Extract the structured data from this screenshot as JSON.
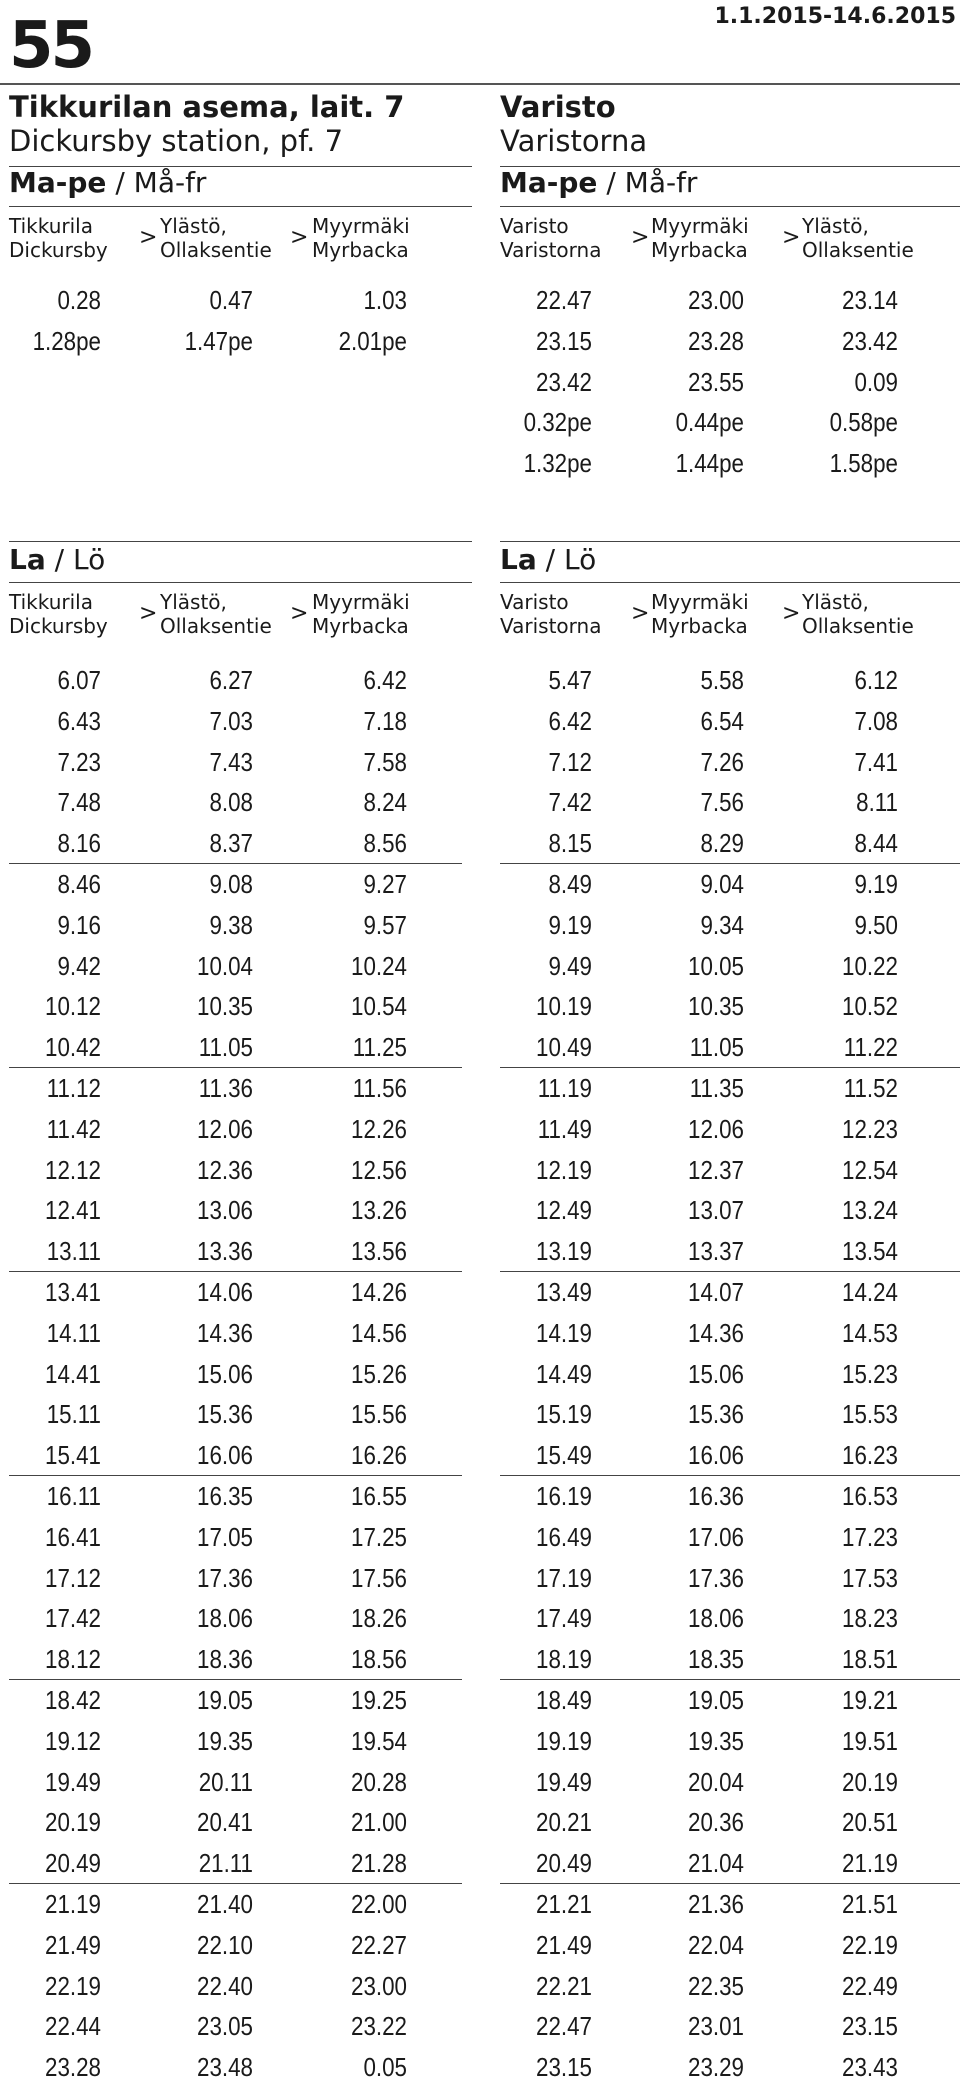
{
  "header": {
    "route_number": "55",
    "validity": "1.1.2015-14.6.2015"
  },
  "directions": [
    {
      "id": "left",
      "stop_fi": "Tikkurilan asema, lait. 7",
      "stop_sv": "Dickursby station, pf. 7",
      "columns": [
        {
          "fi": "Tikkurila",
          "sv": "Dickursby"
        },
        {
          "fi": "Ylästö,",
          "sv": "Ollaksentie"
        },
        {
          "fi": "Myyrmäki",
          "sv": "Myrbacka"
        }
      ],
      "arrow": ">",
      "weekday": {
        "label_fi": "Ma-pe",
        "sep": " / ",
        "label_sv": "Må-fr",
        "rows": [
          [
            "0.28",
            "0.47",
            "1.03"
          ],
          [
            "1.28pe",
            "1.47pe",
            "2.01pe"
          ]
        ]
      },
      "saturday": {
        "label_fi": "La",
        "sep": " / ",
        "label_sv": "Lö",
        "rows": [
          [
            "6.07",
            "6.27",
            "6.42"
          ],
          [
            "6.43",
            "7.03",
            "7.18"
          ],
          [
            "7.23",
            "7.43",
            "7.58"
          ],
          [
            "7.48",
            "8.08",
            "8.24"
          ],
          [
            "8.16",
            "8.37",
            "8.56"
          ],
          [
            "8.46",
            "9.08",
            "9.27"
          ],
          [
            "9.16",
            "9.38",
            "9.57"
          ],
          [
            "9.42",
            "10.04",
            "10.24"
          ],
          [
            "10.12",
            "10.35",
            "10.54"
          ],
          [
            "10.42",
            "11.05",
            "11.25"
          ],
          [
            "11.12",
            "11.36",
            "11.56"
          ],
          [
            "11.42",
            "12.06",
            "12.26"
          ],
          [
            "12.12",
            "12.36",
            "12.56"
          ],
          [
            "12.41",
            "13.06",
            "13.26"
          ],
          [
            "13.11",
            "13.36",
            "13.56"
          ],
          [
            "13.41",
            "14.06",
            "14.26"
          ],
          [
            "14.11",
            "14.36",
            "14.56"
          ],
          [
            "14.41",
            "15.06",
            "15.26"
          ],
          [
            "15.11",
            "15.36",
            "15.56"
          ],
          [
            "15.41",
            "16.06",
            "16.26"
          ],
          [
            "16.11",
            "16.35",
            "16.55"
          ],
          [
            "16.41",
            "17.05",
            "17.25"
          ],
          [
            "17.12",
            "17.36",
            "17.56"
          ],
          [
            "17.42",
            "18.06",
            "18.26"
          ],
          [
            "18.12",
            "18.36",
            "18.56"
          ],
          [
            "18.42",
            "19.05",
            "19.25"
          ],
          [
            "19.12",
            "19.35",
            "19.54"
          ],
          [
            "19.49",
            "20.11",
            "20.28"
          ],
          [
            "20.19",
            "20.41",
            "21.00"
          ],
          [
            "20.49",
            "21.11",
            "21.28"
          ],
          [
            "21.19",
            "21.40",
            "22.00"
          ],
          [
            "21.49",
            "22.10",
            "22.27"
          ],
          [
            "22.19",
            "22.40",
            "23.00"
          ],
          [
            "22.44",
            "23.05",
            "23.22"
          ],
          [
            "23.28",
            "23.48",
            "0.05"
          ]
        ]
      }
    },
    {
      "id": "right",
      "stop_fi": "Varisto",
      "stop_sv": "Varistorna",
      "columns": [
        {
          "fi": "Varisto",
          "sv": "Varistorna"
        },
        {
          "fi": "Myyrmäki",
          "sv": "Myrbacka"
        },
        {
          "fi": "Ylästö,",
          "sv": "Ollaksentie"
        }
      ],
      "arrow": ">",
      "weekday": {
        "label_fi": "Ma-pe",
        "sep": " / ",
        "label_sv": "Må-fr",
        "rows": [
          [
            "22.47",
            "23.00",
            "23.14"
          ],
          [
            "23.15",
            "23.28",
            "23.42"
          ],
          [
            "23.42",
            "23.55",
            "0.09"
          ],
          [
            "0.32pe",
            "0.44pe",
            "0.58pe"
          ],
          [
            "1.32pe",
            "1.44pe",
            "1.58pe"
          ]
        ]
      },
      "saturday": {
        "label_fi": "La",
        "sep": " / ",
        "label_sv": "Lö",
        "rows": [
          [
            "5.47",
            "5.58",
            "6.12"
          ],
          [
            "6.42",
            "6.54",
            "7.08"
          ],
          [
            "7.12",
            "7.26",
            "7.41"
          ],
          [
            "7.42",
            "7.56",
            "8.11"
          ],
          [
            "8.15",
            "8.29",
            "8.44"
          ],
          [
            "8.49",
            "9.04",
            "9.19"
          ],
          [
            "9.19",
            "9.34",
            "9.50"
          ],
          [
            "9.49",
            "10.05",
            "10.22"
          ],
          [
            "10.19",
            "10.35",
            "10.52"
          ],
          [
            "10.49",
            "11.05",
            "11.22"
          ],
          [
            "11.19",
            "11.35",
            "11.52"
          ],
          [
            "11.49",
            "12.06",
            "12.23"
          ],
          [
            "12.19",
            "12.37",
            "12.54"
          ],
          [
            "12.49",
            "13.07",
            "13.24"
          ],
          [
            "13.19",
            "13.37",
            "13.54"
          ],
          [
            "13.49",
            "14.07",
            "14.24"
          ],
          [
            "14.19",
            "14.36",
            "14.53"
          ],
          [
            "14.49",
            "15.06",
            "15.23"
          ],
          [
            "15.19",
            "15.36",
            "15.53"
          ],
          [
            "15.49",
            "16.06",
            "16.23"
          ],
          [
            "16.19",
            "16.36",
            "16.53"
          ],
          [
            "16.49",
            "17.06",
            "17.23"
          ],
          [
            "17.19",
            "17.36",
            "17.53"
          ],
          [
            "17.49",
            "18.06",
            "18.23"
          ],
          [
            "18.19",
            "18.35",
            "18.51"
          ],
          [
            "18.49",
            "19.05",
            "19.21"
          ],
          [
            "19.19",
            "19.35",
            "19.51"
          ],
          [
            "19.49",
            "20.04",
            "20.19"
          ],
          [
            "20.21",
            "20.36",
            "20.51"
          ],
          [
            "20.49",
            "21.04",
            "21.19"
          ],
          [
            "21.21",
            "21.36",
            "21.51"
          ],
          [
            "21.49",
            "22.04",
            "22.19"
          ],
          [
            "22.21",
            "22.35",
            "22.49"
          ],
          [
            "22.47",
            "23.01",
            "23.15"
          ],
          [
            "23.15",
            "23.29",
            "23.43"
          ]
        ]
      }
    }
  ]
}
